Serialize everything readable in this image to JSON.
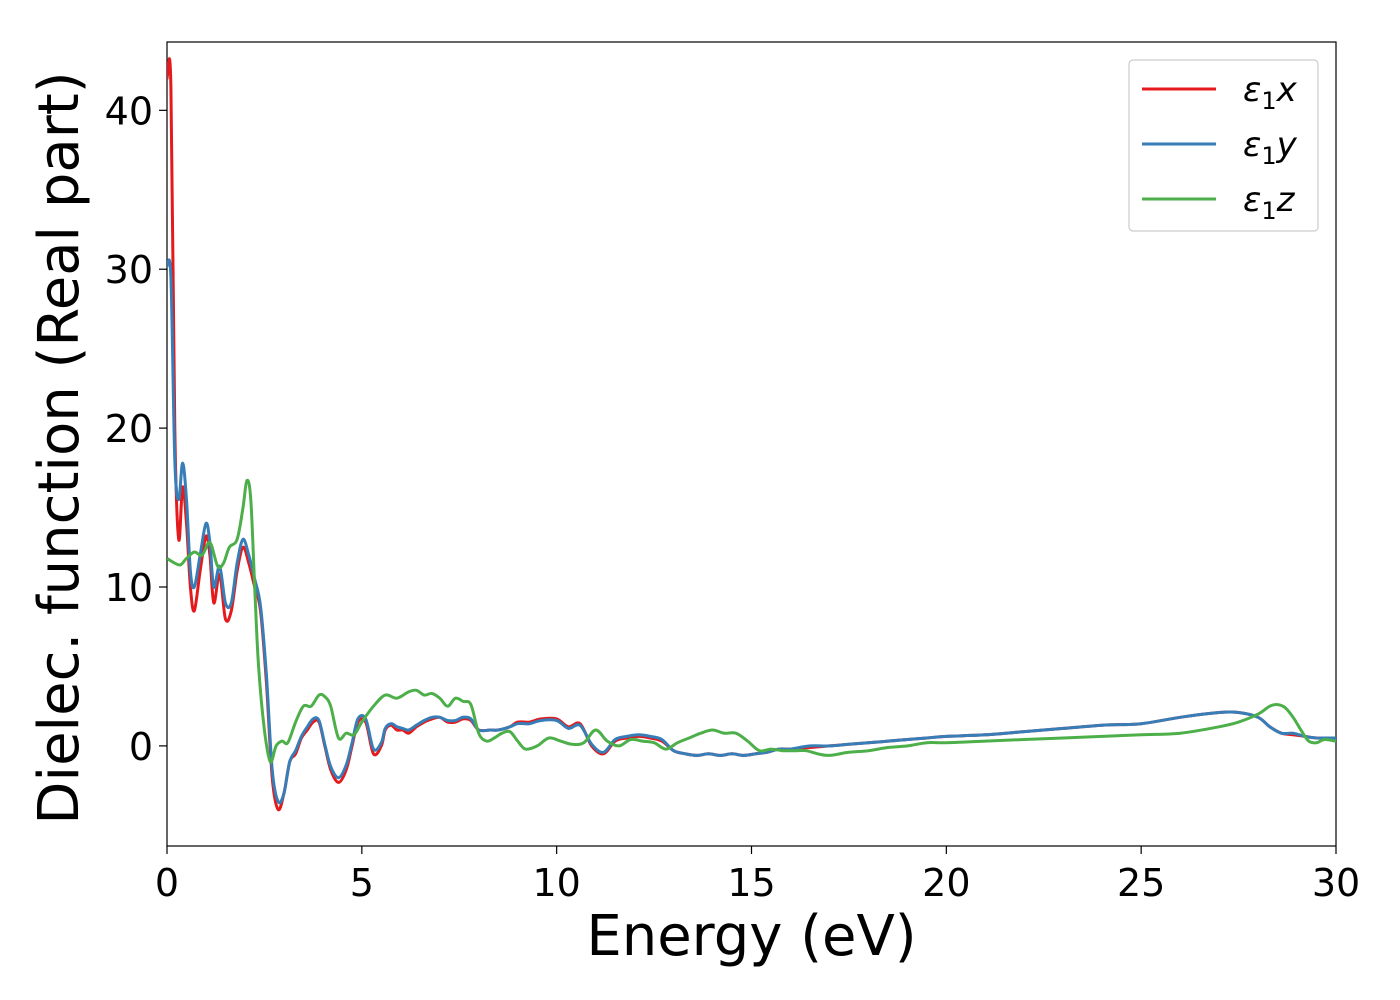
{
  "chart_data": {
    "type": "line",
    "title": "",
    "xlabel": "Energy (eV)",
    "ylabel": "Dielec. function (Real part)",
    "xlim": [
      0,
      30
    ],
    "ylim": [
      -6.3,
      44.3
    ],
    "xticks": [
      0,
      5,
      10,
      15,
      20,
      25,
      30
    ],
    "xtick_labels": [
      "0",
      "5",
      "10",
      "15",
      "20",
      "25",
      "30"
    ],
    "yticks": [
      0,
      10,
      20,
      30,
      40
    ],
    "ytick_labels": [
      "0",
      "10",
      "20",
      "30",
      "40"
    ],
    "grid": false,
    "legend_position": "top-right",
    "series": [
      {
        "name": "ε1x",
        "legend": {
          "symbol": "ε",
          "sub": "1",
          "var": "x"
        },
        "color": "#e41a1c",
        "x": [
          0,
          0.1,
          0.2,
          0.3,
          0.4,
          0.5,
          0.6,
          0.7,
          0.85,
          1.0,
          1.1,
          1.2,
          1.35,
          1.5,
          1.65,
          1.8,
          1.95,
          2.1,
          2.25,
          2.4,
          2.55,
          2.7,
          2.85,
          3.0,
          3.15,
          3.3,
          3.45,
          3.6,
          3.75,
          3.9,
          4.05,
          4.2,
          4.4,
          4.6,
          4.75,
          4.9,
          5.1,
          5.3,
          5.5,
          5.6,
          5.75,
          5.9,
          6.05,
          6.2,
          6.4,
          6.6,
          6.8,
          7.0,
          7.2,
          7.4,
          7.6,
          7.8,
          8.0,
          8.3,
          8.5,
          8.8,
          9.0,
          9.3,
          9.6,
          10.0,
          10.3,
          10.6,
          10.9,
          11.2,
          11.5,
          11.8,
          12.1,
          12.4,
          12.7,
          13.0,
          13.3,
          13.6,
          13.9,
          14.2,
          14.5,
          14.8,
          15.1,
          15.4,
          15.7,
          16.0,
          16.5,
          17.0,
          17.5,
          18.0,
          18.5,
          19.0,
          19.5,
          20.0,
          21.0,
          22.0,
          23.0,
          24.0,
          25.0,
          26.0,
          27.0,
          27.5,
          28.0,
          28.3,
          28.6,
          28.9,
          29.2,
          29.5,
          29.8,
          30.0
        ],
        "y": [
          42,
          41.5,
          20,
          13,
          16.3,
          14,
          10,
          8.5,
          11,
          13.2,
          12,
          9,
          10.8,
          8,
          8.5,
          11,
          12.5,
          11.5,
          10,
          8.5,
          4,
          -2,
          -4,
          -3,
          -1,
          -0.5,
          0.5,
          1,
          1.5,
          1.5,
          0,
          -1.5,
          -2.3,
          -1.5,
          0,
          1.5,
          1.5,
          -0.5,
          0,
          1,
          1.3,
          1,
          1,
          0.8,
          1.2,
          1.5,
          1.7,
          1.8,
          1.5,
          1.5,
          1.7,
          1.6,
          1,
          1,
          1,
          1.2,
          1.5,
          1.5,
          1.7,
          1.7,
          1.2,
          1.4,
          0,
          -0.5,
          0.3,
          0.5,
          0.6,
          0.5,
          0.3,
          -0.3,
          -0.5,
          -0.6,
          -0.5,
          -0.6,
          -0.5,
          -0.6,
          -0.5,
          -0.4,
          -0.2,
          -0.2,
          -0.1,
          0,
          0.1,
          0.2,
          0.3,
          0.4,
          0.5,
          0.6,
          0.7,
          0.9,
          1.1,
          1.3,
          1.4,
          1.8,
          2.1,
          2.1,
          1.8,
          1.2,
          0.8,
          0.7,
          0.6,
          0.5,
          0.5,
          0.5
        ]
      },
      {
        "name": "ε1y",
        "legend": {
          "symbol": "ε",
          "sub": "1",
          "var": "y"
        },
        "color": "#377eb8",
        "x": [
          0,
          0.1,
          0.2,
          0.3,
          0.4,
          0.5,
          0.6,
          0.7,
          0.85,
          1.0,
          1.1,
          1.2,
          1.35,
          1.5,
          1.65,
          1.8,
          1.95,
          2.1,
          2.25,
          2.4,
          2.55,
          2.7,
          2.85,
          3.0,
          3.15,
          3.3,
          3.45,
          3.6,
          3.75,
          3.9,
          4.05,
          4.2,
          4.4,
          4.6,
          4.75,
          4.9,
          5.1,
          5.3,
          5.5,
          5.6,
          5.75,
          5.9,
          6.05,
          6.2,
          6.4,
          6.6,
          6.8,
          7.0,
          7.2,
          7.4,
          7.6,
          7.8,
          8.0,
          8.3,
          8.5,
          8.8,
          9.0,
          9.3,
          9.6,
          10.0,
          10.3,
          10.6,
          10.9,
          11.2,
          11.5,
          11.8,
          12.1,
          12.4,
          12.7,
          13.0,
          13.3,
          13.6,
          13.9,
          14.2,
          14.5,
          14.8,
          15.1,
          15.4,
          15.7,
          16.0,
          16.5,
          17.0,
          17.5,
          18.0,
          18.5,
          19.0,
          19.5,
          20.0,
          21.0,
          22.0,
          23.0,
          24.0,
          25.0,
          26.0,
          27.0,
          27.5,
          28.0,
          28.3,
          28.6,
          28.9,
          29.2,
          29.5,
          29.8,
          30.0
        ],
        "y": [
          30.2,
          29.5,
          18,
          15.5,
          17.8,
          15.5,
          11,
          10,
          12,
          14,
          12.8,
          10,
          11.3,
          9,
          9,
          11.5,
          13,
          12,
          10.5,
          8.8,
          4.5,
          -1.5,
          -3.5,
          -3,
          -1,
          -0.3,
          0.6,
          1.2,
          1.7,
          1.6,
          0.1,
          -1.3,
          -2,
          -1.2,
          0.2,
          1.7,
          1.7,
          -0.2,
          0.2,
          1.1,
          1.4,
          1.2,
          1.1,
          1,
          1.3,
          1.6,
          1.8,
          1.8,
          1.6,
          1.6,
          1.8,
          1.7,
          1,
          1,
          1,
          1.2,
          1.4,
          1.4,
          1.6,
          1.6,
          1.1,
          1.3,
          0.1,
          -0.4,
          0.4,
          0.6,
          0.7,
          0.6,
          0.4,
          -0.3,
          -0.5,
          -0.6,
          -0.5,
          -0.6,
          -0.5,
          -0.6,
          -0.5,
          -0.4,
          -0.2,
          -0.2,
          0,
          0,
          0.1,
          0.2,
          0.3,
          0.4,
          0.5,
          0.6,
          0.7,
          0.9,
          1.1,
          1.3,
          1.4,
          1.8,
          2.1,
          2.1,
          1.8,
          1.2,
          0.8,
          0.8,
          0.6,
          0.5,
          0.5,
          0.5
        ]
      },
      {
        "name": "ε1z",
        "legend": {
          "symbol": "ε",
          "sub": "1",
          "var": "z"
        },
        "color": "#4daf4a",
        "x": [
          0,
          0.2,
          0.35,
          0.5,
          0.7,
          0.9,
          1.1,
          1.3,
          1.45,
          1.6,
          1.8,
          1.95,
          2.05,
          2.15,
          2.25,
          2.35,
          2.5,
          2.65,
          2.8,
          2.95,
          3.1,
          3.3,
          3.5,
          3.7,
          3.9,
          4.05,
          4.2,
          4.4,
          4.6,
          4.8,
          5.0,
          5.3,
          5.6,
          5.9,
          6.2,
          6.4,
          6.6,
          6.8,
          7.0,
          7.2,
          7.4,
          7.6,
          7.8,
          8.0,
          8.2,
          8.4,
          8.6,
          8.8,
          9.0,
          9.2,
          9.5,
          9.8,
          10.1,
          10.4,
          10.7,
          11.0,
          11.3,
          11.6,
          11.9,
          12.2,
          12.5,
          12.8,
          13.1,
          13.4,
          13.7,
          14.0,
          14.3,
          14.6,
          14.9,
          15.2,
          15.5,
          15.8,
          16.1,
          16.4,
          16.7,
          17.0,
          17.5,
          18.0,
          18.5,
          19.0,
          19.5,
          20.0,
          21.0,
          22.0,
          23.0,
          24.0,
          25.0,
          26.0,
          27.0,
          27.5,
          28.0,
          28.3,
          28.5,
          28.7,
          28.9,
          29.1,
          29.3,
          29.5,
          29.7,
          30.0
        ],
        "y": [
          11.8,
          11.5,
          11.4,
          11.8,
          12.2,
          12,
          12.8,
          11.3,
          11.5,
          12.5,
          13,
          15,
          16.7,
          15.5,
          10,
          5,
          1,
          -1,
          0,
          0.3,
          0.2,
          1.5,
          2.5,
          2.5,
          3.2,
          3.1,
          2.5,
          0.5,
          0.8,
          0.7,
          1.5,
          2.5,
          3.2,
          3,
          3.4,
          3.5,
          3.2,
          3.3,
          3,
          2.5,
          3,
          2.8,
          2.6,
          0.8,
          0.3,
          0.5,
          0.8,
          0.9,
          0.3,
          -0.2,
          0,
          0.5,
          0.3,
          0.1,
          0.2,
          1,
          0.3,
          0,
          0.4,
          0.3,
          0.2,
          -0.2,
          0.2,
          0.5,
          0.8,
          1,
          0.8,
          0.8,
          0.3,
          -0.3,
          -0.2,
          -0.3,
          -0.3,
          -0.3,
          -0.5,
          -0.6,
          -0.4,
          -0.3,
          -0.1,
          0,
          0.2,
          0.2,
          0.3,
          0.4,
          0.5,
          0.6,
          0.7,
          0.8,
          1.2,
          1.5,
          2,
          2.5,
          2.6,
          2.4,
          1.8,
          1,
          0.3,
          0.2,
          0.4,
          0.3
        ]
      }
    ]
  }
}
